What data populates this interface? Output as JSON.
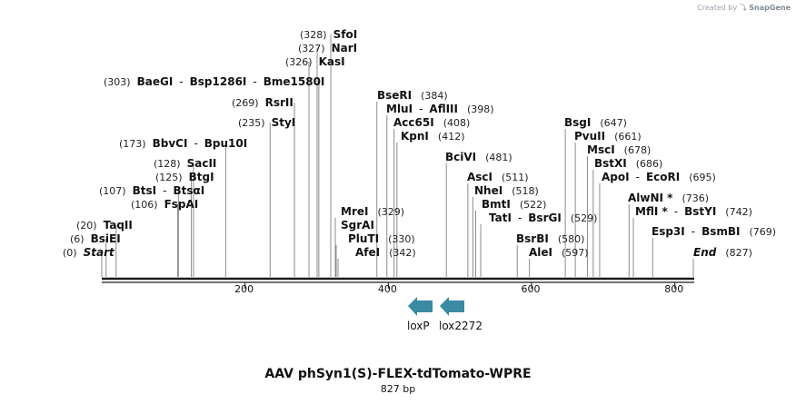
{
  "credit": {
    "prefix": "Created by",
    "brand": "SnapGene"
  },
  "map": {
    "title": "AAV phSyn1(S)-FLEX-tdTomato-WPRE",
    "length_label": "827 bp",
    "total_bp": 827,
    "ticks": [
      {
        "bp": 200,
        "label": "200"
      },
      {
        "bp": 400,
        "label": "400"
      },
      {
        "bp": 600,
        "label": "600"
      },
      {
        "bp": 800,
        "label": "800"
      }
    ]
  },
  "sites": [
    {
      "id": "start",
      "parts": [
        {
          "t": "(0)",
          "k": "pos"
        },
        {
          "t": "Start",
          "k": "end"
        }
      ],
      "bp": 0,
      "x": 112
    },
    {
      "id": "bsiei",
      "parts": [
        {
          "t": "(6)",
          "k": "pos"
        },
        {
          "t": "BsiEI",
          "k": "name"
        }
      ],
      "bp": 6
    },
    {
      "id": "taqii",
      "parts": [
        {
          "t": "(20)",
          "k": "pos"
        },
        {
          "t": "TaqII",
          "k": "name"
        }
      ],
      "bp": 20
    },
    {
      "id": "fspai",
      "parts": [
        {
          "t": "(106)",
          "k": "pos"
        },
        {
          "t": "FspAI",
          "k": "name"
        }
      ],
      "bp": 106
    },
    {
      "id": "btsi",
      "parts": [
        {
          "t": "(107)",
          "k": "pos"
        },
        {
          "t": "BtsI",
          "k": "name"
        },
        {
          "t": "-",
          "k": "sep"
        },
        {
          "t": "BtsαI",
          "k": "name"
        }
      ],
      "bp": 107
    },
    {
      "id": "btgi",
      "parts": [
        {
          "t": "(125)",
          "k": "pos"
        },
        {
          "t": "BtgI",
          "k": "name"
        }
      ],
      "bp": 125
    },
    {
      "id": "sacii",
      "parts": [
        {
          "t": "(128)",
          "k": "pos"
        },
        {
          "t": "SacII",
          "k": "name"
        }
      ],
      "bp": 128
    },
    {
      "id": "bbvci",
      "parts": [
        {
          "t": "(173)",
          "k": "pos"
        },
        {
          "t": "BbvCI",
          "k": "name"
        },
        {
          "t": "-",
          "k": "sep"
        },
        {
          "t": "Bpu10I",
          "k": "name"
        }
      ],
      "bp": 173
    },
    {
      "id": "styi",
      "parts": [
        {
          "t": "(235)",
          "k": "pos"
        },
        {
          "t": "StyI",
          "k": "name"
        }
      ],
      "bp": 235
    },
    {
      "id": "rsrii",
      "parts": [
        {
          "t": "(269)",
          "k": "pos"
        },
        {
          "t": "RsrII",
          "k": "name"
        }
      ],
      "bp": 269
    },
    {
      "id": "baegi",
      "parts": [
        {
          "t": "(303)",
          "k": "pos"
        },
        {
          "t": "BaeGI",
          "k": "name"
        },
        {
          "t": "-",
          "k": "sep"
        },
        {
          "t": "Bsp1286I",
          "k": "name"
        },
        {
          "t": "-",
          "k": "sep"
        },
        {
          "t": "Bme1580I",
          "k": "name"
        }
      ],
      "bp": 303
    },
    {
      "id": "kasi",
      "parts": [
        {
          "t": "(326)",
          "k": "pos"
        },
        {
          "t": "KasI",
          "k": "name"
        }
      ],
      "bp": 326
    },
    {
      "id": "nari",
      "parts": [
        {
          "t": "(327)",
          "k": "pos"
        },
        {
          "t": "NarI",
          "k": "name"
        }
      ],
      "bp": 327
    },
    {
      "id": "sfoi",
      "parts": [
        {
          "t": "(328)",
          "k": "pos"
        },
        {
          "t": "SfoI",
          "k": "name"
        }
      ],
      "bp": 328
    },
    {
      "id": "mrei",
      "parts": [
        {
          "t": "MreI",
          "k": "name"
        },
        {
          "t": "(329)",
          "k": "pos"
        }
      ],
      "bp": 329
    },
    {
      "id": "sgrai",
      "parts": [
        {
          "t": "SgrAI",
          "k": "name"
        }
      ],
      "bp": 329
    },
    {
      "id": "pluti",
      "parts": [
        {
          "t": "PluTI",
          "k": "name"
        },
        {
          "t": "(330)",
          "k": "pos"
        }
      ],
      "bp": 330
    },
    {
      "id": "afei",
      "parts": [
        {
          "t": "AfeI",
          "k": "name"
        },
        {
          "t": "(342)",
          "k": "pos"
        }
      ],
      "bp": 342
    },
    {
      "id": "kpni",
      "parts": [
        {
          "t": "KpnI",
          "k": "name"
        },
        {
          "t": "(412)",
          "k": "pos"
        }
      ],
      "bp": 412
    },
    {
      "id": "acc65i",
      "parts": [
        {
          "t": "Acc65I",
          "k": "name"
        },
        {
          "t": "(408)",
          "k": "pos"
        }
      ],
      "bp": 408
    },
    {
      "id": "mlui",
      "parts": [
        {
          "t": "MluI",
          "k": "name"
        },
        {
          "t": "-",
          "k": "sep"
        },
        {
          "t": "AflIII",
          "k": "name"
        },
        {
          "t": "(398)",
          "k": "pos"
        }
      ],
      "bp": 398
    },
    {
      "id": "bseri",
      "parts": [
        {
          "t": "BseRI",
          "k": "name"
        },
        {
          "t": "(384)",
          "k": "pos"
        }
      ],
      "bp": 384
    },
    {
      "id": "bcivi",
      "parts": [
        {
          "t": "BciVI",
          "k": "name"
        },
        {
          "t": "(481)",
          "k": "pos"
        }
      ],
      "bp": 481
    },
    {
      "id": "asci",
      "parts": [
        {
          "t": "AscI",
          "k": "name"
        },
        {
          "t": "(511)",
          "k": "pos"
        }
      ],
      "bp": 511
    },
    {
      "id": "nhei",
      "parts": [
        {
          "t": "NheI",
          "k": "name"
        },
        {
          "t": "(518)",
          "k": "pos"
        }
      ],
      "bp": 518
    },
    {
      "id": "bmti",
      "parts": [
        {
          "t": "BmtI",
          "k": "name"
        },
        {
          "t": "(522)",
          "k": "pos"
        }
      ],
      "bp": 522
    },
    {
      "id": "tati",
      "parts": [
        {
          "t": "TatI",
          "k": "name"
        },
        {
          "t": "-",
          "k": "sep"
        },
        {
          "t": "BsrGI",
          "k": "name"
        },
        {
          "t": "(529)",
          "k": "pos"
        }
      ],
      "bp": 529
    },
    {
      "id": "bsrbi",
      "parts": [
        {
          "t": "BsrBI",
          "k": "name"
        },
        {
          "t": "(580)",
          "k": "pos"
        }
      ],
      "bp": 580
    },
    {
      "id": "alei",
      "parts": [
        {
          "t": "AleI",
          "k": "name"
        },
        {
          "t": "(597)",
          "k": "pos"
        }
      ],
      "bp": 597
    },
    {
      "id": "bsgi",
      "parts": [
        {
          "t": "BsgI",
          "k": "name"
        },
        {
          "t": "(647)",
          "k": "pos"
        }
      ],
      "bp": 647
    },
    {
      "id": "pvuii",
      "parts": [
        {
          "t": "PvuII",
          "k": "name"
        },
        {
          "t": "(661)",
          "k": "pos"
        }
      ],
      "bp": 661
    },
    {
      "id": "msci",
      "parts": [
        {
          "t": "MscI",
          "k": "name"
        },
        {
          "t": "(678)",
          "k": "pos"
        }
      ],
      "bp": 678
    },
    {
      "id": "bstxi",
      "parts": [
        {
          "t": "BstXI",
          "k": "name"
        },
        {
          "t": "(686)",
          "k": "pos"
        }
      ],
      "bp": 686
    },
    {
      "id": "apoi",
      "parts": [
        {
          "t": "ApoI",
          "k": "name"
        },
        {
          "t": "-",
          "k": "sep"
        },
        {
          "t": "EcoRI",
          "k": "name"
        },
        {
          "t": "(695)",
          "k": "pos"
        }
      ],
      "bp": 695
    },
    {
      "id": "alwni",
      "parts": [
        {
          "t": "AlwNI *",
          "k": "name"
        },
        {
          "t": "(736)",
          "k": "pos"
        }
      ],
      "bp": 736
    },
    {
      "id": "mfli",
      "parts": [
        {
          "t": "MflI *",
          "k": "name"
        },
        {
          "t": "-",
          "k": "sep"
        },
        {
          "t": "BstYI",
          "k": "name"
        },
        {
          "t": "(742)",
          "k": "pos"
        }
      ],
      "bp": 742
    },
    {
      "id": "esp3i",
      "parts": [
        {
          "t": "Esp3I",
          "k": "name"
        },
        {
          "t": "-",
          "k": "sep"
        },
        {
          "t": "BsmBI",
          "k": "name"
        },
        {
          "t": "(769)",
          "k": "pos"
        }
      ],
      "bp": 769
    },
    {
      "id": "end",
      "parts": [
        {
          "t": "End",
          "k": "end"
        },
        {
          "t": "(827)",
          "k": "pos"
        }
      ],
      "bp": 827,
      "x": 763
    }
  ],
  "features": [
    {
      "id": "loxp",
      "label": "loxP",
      "color": "#3a8aa3"
    },
    {
      "id": "lox2272",
      "label": "lox2272",
      "color": "#3a8aa3"
    }
  ],
  "colors": {
    "backbone": "#1a1a1a",
    "connector": "#8c8c8c",
    "text": "#111111",
    "pos_text": "#222222"
  }
}
